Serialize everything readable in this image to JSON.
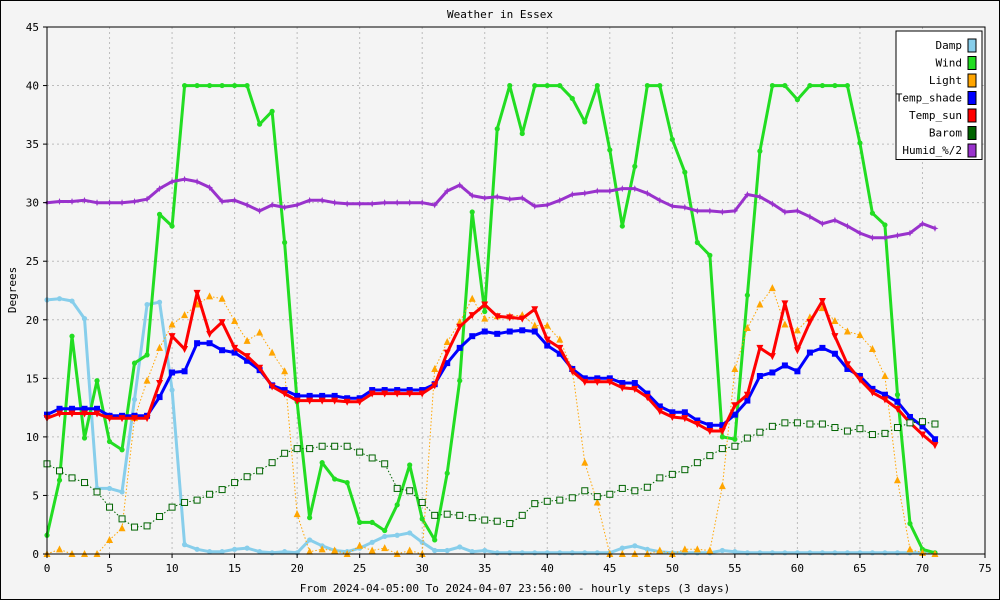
{
  "chart_data": {
    "type": "line",
    "title": "Weather in Essex",
    "xlabel": "From 2024-04-05:00 To 2024-04-07 23:56:00 - hourly steps (3 days)",
    "ylabel": "Degrees",
    "xlim": [
      0,
      75
    ],
    "ylim": [
      0,
      45
    ],
    "xticks": [
      0,
      5,
      10,
      15,
      20,
      25,
      30,
      35,
      40,
      45,
      50,
      55,
      60,
      65,
      70,
      75
    ],
    "yticks": [
      0,
      5,
      10,
      15,
      20,
      25,
      30,
      35,
      40,
      45
    ],
    "grid": true,
    "legend": "top-right",
    "series": [
      {
        "name": "Damp",
        "color": "#87ceeb",
        "marker": "circle",
        "style": "solid",
        "width": 3,
        "values": [
          21.7,
          21.8,
          21.6,
          20.1,
          5.6,
          5.6,
          5.3,
          13.2,
          21.3,
          21.5,
          14.0,
          0.8,
          0.4,
          0.2,
          0.2,
          0.4,
          0.5,
          0.2,
          0.1,
          0.2,
          0.1,
          1.2,
          0.7,
          0.3,
          0.2,
          0.5,
          1.0,
          1.5,
          1.6,
          1.8,
          1.0,
          0.3,
          0.3,
          0.6,
          0.2,
          0.3,
          0.1,
          0.1,
          0.1,
          0.1,
          0.1,
          0.1,
          0.1,
          0.1,
          0.1,
          0.1,
          0.5,
          0.7,
          0.4,
          0.2,
          0.1,
          0.1,
          0.1,
          0.1,
          0.3,
          0.2,
          0.1,
          0.1,
          0.1,
          0.1,
          0.1,
          0.1,
          0.1,
          0.1,
          0.1,
          0.1,
          0.1,
          0.1,
          0.1,
          0.1,
          0.1,
          0.1
        ]
      },
      {
        "name": "Wind",
        "color": "#22dd22",
        "marker": "circle",
        "style": "solid",
        "width": 3,
        "values": [
          1.6,
          6.3,
          18.6,
          9.9,
          14.8,
          9.6,
          8.9,
          16.3,
          17.0,
          29.0,
          28.0,
          40.0,
          40.0,
          40.0,
          40.0,
          40.0,
          40.0,
          36.7,
          37.8,
          26.6,
          13.0,
          3.1,
          7.8,
          6.4,
          6.1,
          2.7,
          2.7,
          2.0,
          4.2,
          7.6,
          3.0,
          1.2,
          6.9,
          14.8,
          29.2,
          20.7,
          36.3,
          40.0,
          35.9,
          40.0,
          40.0,
          40.0,
          38.9,
          36.9,
          40.0,
          34.5,
          28.0,
          33.1,
          40.0,
          40.0,
          35.4,
          32.6,
          26.6,
          25.5,
          10.0,
          9.8,
          22.1,
          34.4,
          40.0,
          40.0,
          38.8,
          40.0,
          40.0,
          40.0,
          40.0,
          35.1,
          29.1,
          28.1,
          13.6,
          2.6,
          0.4,
          0.1
        ]
      },
      {
        "name": "Light",
        "color": "#ffa500",
        "marker": "triangle-up",
        "style": "dotted",
        "width": 1,
        "values": [
          0.0,
          0.4,
          0.0,
          0.0,
          0.0,
          1.2,
          2.2,
          11.6,
          14.8,
          17.6,
          19.6,
          20.4,
          21.3,
          22.0,
          21.8,
          19.9,
          18.2,
          18.9,
          17.2,
          15.6,
          3.4,
          0.2,
          0.4,
          0.3,
          0.0,
          0.7,
          0.3,
          0.5,
          0.0,
          0.3,
          0.0,
          15.8,
          18.1,
          19.8,
          21.8,
          20.1,
          20.3,
          20.3,
          20.4,
          19.5,
          19.5,
          18.3,
          15.8,
          7.8,
          4.4,
          0.0,
          0.0,
          0.0,
          0.0,
          0.3,
          0.0,
          0.4,
          0.4,
          0.3,
          5.8,
          15.8,
          19.3,
          21.3,
          22.7,
          19.6,
          19.1,
          20.2,
          21.0,
          19.9,
          19.0,
          18.7,
          17.5,
          15.2,
          6.3,
          0.4,
          0.1,
          0.0
        ]
      },
      {
        "name": "Temp_shade",
        "color": "#0000ff",
        "marker": "square",
        "style": "solid",
        "width": 3,
        "values": [
          11.9,
          12.4,
          12.4,
          12.4,
          12.4,
          11.8,
          11.8,
          11.8,
          11.8,
          13.4,
          15.5,
          15.6,
          18.0,
          18.0,
          17.4,
          17.2,
          16.5,
          15.7,
          14.4,
          14.0,
          13.5,
          13.5,
          13.5,
          13.5,
          13.3,
          13.3,
          14.0,
          14.0,
          14.0,
          14.0,
          14.0,
          14.5,
          16.3,
          17.6,
          18.6,
          19.0,
          18.8,
          19.0,
          19.1,
          19.0,
          17.8,
          17.1,
          15.8,
          15.0,
          15.0,
          15.0,
          14.6,
          14.6,
          13.7,
          12.6,
          12.1,
          12.1,
          11.4,
          11.0,
          11.0,
          11.9,
          13.1,
          15.2,
          15.5,
          16.1,
          15.6,
          17.2,
          17.6,
          17.1,
          15.8,
          15.2,
          14.1,
          13.6,
          13.0,
          11.7,
          10.9,
          9.8
        ]
      },
      {
        "name": "Temp_sun",
        "color": "#ff0000",
        "marker": "triangle-down",
        "style": "solid",
        "width": 3,
        "values": [
          11.6,
          12.0,
          12.0,
          12.0,
          12.0,
          11.6,
          11.6,
          11.6,
          11.6,
          14.6,
          18.6,
          17.5,
          22.3,
          18.8,
          19.8,
          17.6,
          16.9,
          15.9,
          14.3,
          13.7,
          13.1,
          13.1,
          13.1,
          13.1,
          13.0,
          13.0,
          13.7,
          13.7,
          13.7,
          13.7,
          13.7,
          14.4,
          17.2,
          19.4,
          20.4,
          21.3,
          20.3,
          20.2,
          20.1,
          20.9,
          18.3,
          17.6,
          15.6,
          14.7,
          14.7,
          14.7,
          14.2,
          14.1,
          13.4,
          12.2,
          11.7,
          11.6,
          11.1,
          10.5,
          10.5,
          12.7,
          13.6,
          17.6,
          16.9,
          21.4,
          17.4,
          19.8,
          21.6,
          18.6,
          16.2,
          14.9,
          13.8,
          13.2,
          12.4,
          11.2,
          10.2,
          9.3
        ]
      },
      {
        "name": "Barom",
        "color": "#006400",
        "marker": "open-square",
        "style": "dotted",
        "width": 1,
        "values": [
          7.7,
          7.1,
          6.5,
          6.1,
          5.3,
          4.0,
          3.0,
          2.3,
          2.4,
          3.2,
          4.0,
          4.4,
          4.6,
          5.1,
          5.5,
          6.1,
          6.6,
          7.1,
          7.8,
          8.6,
          9.0,
          9.0,
          9.2,
          9.2,
          9.2,
          8.7,
          8.2,
          7.7,
          5.6,
          5.4,
          4.4,
          3.3,
          3.4,
          3.3,
          3.1,
          2.9,
          2.8,
          2.6,
          3.3,
          4.3,
          4.5,
          4.6,
          4.8,
          5.4,
          4.9,
          5.1,
          5.6,
          5.4,
          5.7,
          6.5,
          6.8,
          7.2,
          7.8,
          8.4,
          9.0,
          9.2,
          9.9,
          10.4,
          10.9,
          11.2,
          11.2,
          11.1,
          11.1,
          10.8,
          10.5,
          10.7,
          10.2,
          10.3,
          10.8,
          11.2,
          11.3,
          11.1
        ]
      },
      {
        "name": "Humid_%/2",
        "color": "#9932cc",
        "marker": "star",
        "style": "solid",
        "width": 3,
        "values": [
          30.0,
          30.1,
          30.1,
          30.2,
          30.0,
          30.0,
          30.0,
          30.1,
          30.3,
          31.2,
          31.8,
          32.0,
          31.8,
          31.3,
          30.1,
          30.2,
          29.8,
          29.3,
          29.8,
          29.6,
          29.8,
          30.2,
          30.2,
          30.0,
          29.9,
          29.9,
          29.9,
          30.0,
          30.0,
          30.0,
          30.0,
          29.8,
          31.0,
          31.5,
          30.6,
          30.4,
          30.5,
          30.3,
          30.4,
          29.7,
          29.8,
          30.2,
          30.7,
          30.8,
          31.0,
          31.0,
          31.2,
          31.2,
          30.8,
          30.2,
          29.7,
          29.6,
          29.3,
          29.3,
          29.2,
          29.3,
          30.7,
          30.5,
          29.9,
          29.2,
          29.3,
          28.8,
          28.2,
          28.5,
          28.0,
          27.4,
          27.0,
          27.0,
          27.2,
          27.4,
          28.2,
          27.8
        ]
      }
    ]
  }
}
